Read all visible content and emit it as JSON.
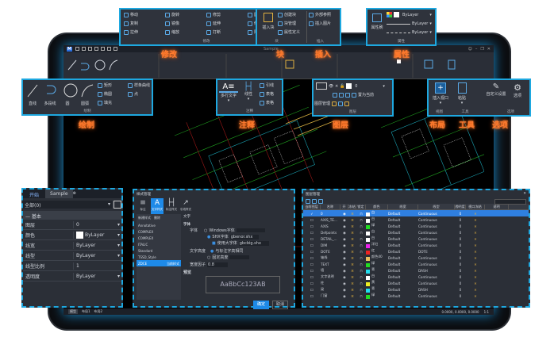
{
  "app": {
    "logo": "M",
    "title": "Sample",
    "quick_icons": [
      "new-icon",
      "open-icon",
      "save-icon",
      "saveas-icon",
      "undo-icon",
      "redo-icon",
      "help-icon"
    ],
    "window_controls": [
      "user-icon",
      "minimize",
      "restore",
      "close"
    ]
  },
  "callouts": {
    "modify": "修改",
    "block": "块",
    "insert": "插入",
    "properties": "属性",
    "draw": "绘制",
    "annotate": "注释",
    "layer": "图层",
    "layout": "布局",
    "tools": "工具",
    "options": "选项"
  },
  "modify_panel": {
    "title": "修改",
    "items": [
      "移动",
      "旋转",
      "修剪",
      "圆角",
      "复制",
      "镜像",
      "延伸",
      "倒角",
      "拉伸",
      "缩放",
      "打断",
      "阵列"
    ]
  },
  "block_panel": {
    "title": "块",
    "insert_label": "插入块",
    "items": [
      "创建块",
      "块管理",
      "属性定义"
    ],
    "insert_title": "插入",
    "insert_items": [
      "外部参照",
      "插入图片"
    ]
  },
  "prop_panel": {
    "title": "属性",
    "match_label": "属性刷",
    "color": "ByLayer",
    "lineweight": "ByLayer",
    "linetype": "ByLayer"
  },
  "draw_panel": {
    "title": "绘制",
    "big": [
      "直线",
      "多段线",
      "圆",
      "圆弧"
    ],
    "small": [
      "矩形",
      "椭圆",
      "填充",
      "样条曲线",
      "点"
    ]
  },
  "annot_panel": {
    "title": "注释",
    "big": [
      "多行文字",
      "线性"
    ],
    "small": [
      "引线",
      "表格",
      "表格"
    ]
  },
  "layer_panel": {
    "title": "图层",
    "manager": "图层管理",
    "current": "0",
    "set_current": "置为当前"
  },
  "tools_panel": {
    "layout_title": "视图",
    "viewport": "插入视口",
    "tools_title": "工具",
    "paste": "粘贴",
    "options_title": "选项",
    "options_items": [
      "自定义设置",
      "选项"
    ]
  },
  "props_window": {
    "tabs": [
      "开始",
      "Sample"
    ],
    "filter": "全部(0)",
    "section": "基本",
    "rows": [
      {
        "k": "图层",
        "v": "0"
      },
      {
        "k": "颜色",
        "v": "ByLayer",
        "swatch": "#ffffff"
      },
      {
        "k": "线宽",
        "v": "ByLayer"
      },
      {
        "k": "线型",
        "v": "ByLayer"
      },
      {
        "k": "线型比例",
        "v": "1"
      },
      {
        "k": "透明度",
        "v": "ByLayer"
      }
    ]
  },
  "text_style": {
    "title": "样式管理",
    "tabs": [
      "标注",
      "文字样式",
      "标注样式",
      "引线样式"
    ],
    "new_btn": "新建样式",
    "del_btn": "删除",
    "styles": [
      "Annotative",
      "COMPLEX",
      "COMPLEX",
      "ITALIC",
      "Standard",
      "TSSD_Style",
      "ZDCE"
    ],
    "selected_style": "ZDCE",
    "selected_badge": "当前样式",
    "section": "字体",
    "font_label": "字体",
    "win_font": "Windows字体",
    "shx_font": "SHX字体",
    "shx_value": "gbenor.shx",
    "bigfont_label": "使用大字体",
    "bigfont_value": "gbcbig.shx",
    "height_label": "文字高度",
    "height_opt1": "与标注字高相同",
    "height_opt2": "固定高度",
    "width_label": "宽度因子",
    "width_value": "0.8",
    "preview_label": "预览",
    "preview": "AaBbCc123AB",
    "ok": "确定",
    "cancel": "取消",
    "header": "文字"
  },
  "layer_window": {
    "title": "图层管理",
    "columns": [
      "当前图层",
      "名称",
      "开",
      "冻结",
      "锁定",
      "颜色",
      "线宽",
      "线型",
      "透明度",
      "视口冻结",
      "说明"
    ],
    "rows": [
      {
        "name": "0",
        "color": "#ffffff",
        "cname": "白",
        "lw": "Default",
        "lt": "Continuous",
        "tr": "0",
        "current": true
      },
      {
        "name": "AXIS_TE...",
        "color": "#ffffff",
        "cname": "白",
        "lw": "Default",
        "lt": "Continuous",
        "tr": "0"
      },
      {
        "name": "AXIS",
        "color": "#22dd22",
        "cname": "绿",
        "lw": "Default",
        "lt": "Continuous",
        "tr": "0"
      },
      {
        "name": "Defpoints",
        "color": "#ffffff",
        "cname": "白",
        "lw": "Default",
        "lt": "Continuous",
        "tr": "0"
      },
      {
        "name": "DETAIL_...",
        "color": "#ffffff",
        "cname": "白",
        "lw": "Default",
        "lt": "Continuous",
        "tr": "0"
      },
      {
        "name": "DIM",
        "color": "#ee22ee",
        "cname": "洋红",
        "lw": "Default",
        "lt": "Continuous",
        "tr": "0"
      },
      {
        "name": "DOTE",
        "color": "#ee2222",
        "cname": "红",
        "lw": "Default",
        "lt": "DOTE",
        "tr": "0"
      },
      {
        "name": "轴线",
        "color": "#e8c060",
        "cname": "颜色40",
        "lw": "Default",
        "lt": "Continuous",
        "tr": "0"
      },
      {
        "name": "TEXT",
        "color": "#22dd22",
        "cname": "绿",
        "lw": "Default",
        "lt": "Continuous",
        "tr": "0"
      },
      {
        "name": "墙",
        "color": "#22ddee",
        "cname": "青",
        "lw": "Default",
        "lt": "DASH",
        "tr": "0"
      },
      {
        "name": "文字说明",
        "color": "#ffffff",
        "cname": "白",
        "lw": "Default",
        "lt": "Continuous",
        "tr": "0"
      },
      {
        "name": "柱",
        "color": "#eeee22",
        "cname": "黄",
        "lw": "Default",
        "lt": "Continuous",
        "tr": "0"
      },
      {
        "name": "梁",
        "color": "#22ddee",
        "cname": "青",
        "lw": "Default",
        "lt": "DASH",
        "tr": "0"
      },
      {
        "name": "门窗",
        "color": "#22dd22",
        "cname": "绿",
        "lw": "Default",
        "lt": "Continuous",
        "tr": "0"
      }
    ]
  },
  "status": {
    "tabs": [
      "模型",
      "布局1",
      "布局2"
    ],
    "coords": "0.0000, 0.0000, 0.0000",
    "scale": "1:1",
    "accent": "#1ea8e0"
  }
}
